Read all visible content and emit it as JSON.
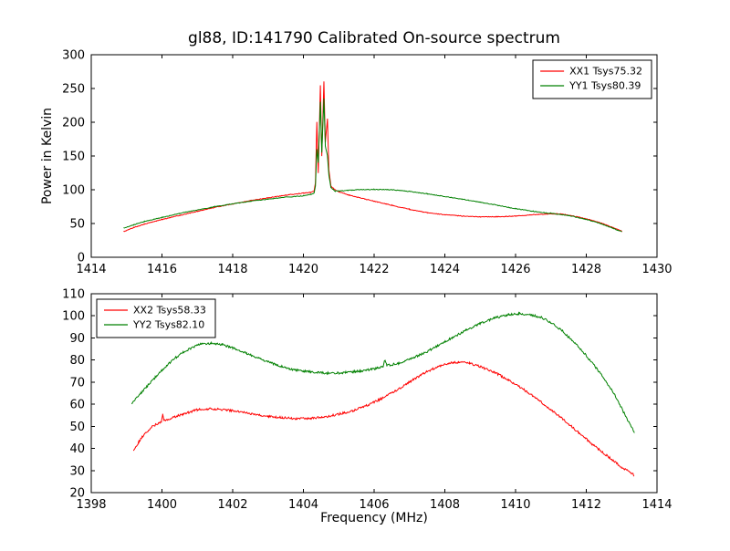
{
  "figure": {
    "background": "#ffffff",
    "frame_color": "#000000"
  },
  "chart_data": [
    {
      "type": "line",
      "title": "gl88, ID:141790 Calibrated On-source spectrum",
      "xlabel": "",
      "ylabel": "Power in Kelvin",
      "xlim": [
        1414,
        1430
      ],
      "ylim": [
        0,
        300
      ],
      "xticks": [
        1414,
        1416,
        1418,
        1420,
        1422,
        1424,
        1426,
        1428,
        1430
      ],
      "yticks": [
        0,
        50,
        100,
        150,
        200,
        250,
        300
      ],
      "grid": false,
      "legend_position": "top-right",
      "series": [
        {
          "name": "XX1",
          "label": "XX1 Tsys75.32",
          "color": "#ff0000",
          "noise": 0.5,
          "points": [
            [
              1414.92,
              38
            ],
            [
              1415.2,
              44
            ],
            [
              1415.5,
              49
            ],
            [
              1416,
              56
            ],
            [
              1416.5,
              62
            ],
            [
              1417,
              68
            ],
            [
              1417.5,
              74
            ],
            [
              1418,
              79
            ],
            [
              1418.5,
              84
            ],
            [
              1419,
              88
            ],
            [
              1419.5,
              92
            ],
            [
              1420,
              95
            ],
            [
              1420.2,
              96
            ],
            [
              1420.3,
              98
            ],
            [
              1420.34,
              110
            ],
            [
              1420.38,
              200
            ],
            [
              1420.42,
              125
            ],
            [
              1420.48,
              255
            ],
            [
              1420.52,
              150
            ],
            [
              1420.58,
              260
            ],
            [
              1420.62,
              170
            ],
            [
              1420.68,
              205
            ],
            [
              1420.72,
              130
            ],
            [
              1420.78,
              105
            ],
            [
              1420.9,
              100
            ],
            [
              1421,
              97
            ],
            [
              1421.3,
              92
            ],
            [
              1421.6,
              88
            ],
            [
              1422,
              83
            ],
            [
              1422.5,
              77
            ],
            [
              1423,
              71
            ],
            [
              1423.5,
              66
            ],
            [
              1424,
              63
            ],
            [
              1424.5,
              61
            ],
            [
              1425,
              60
            ],
            [
              1425.5,
              60
            ],
            [
              1426,
              61
            ],
            [
              1426.5,
              63
            ],
            [
              1427,
              64.5
            ],
            [
              1427.3,
              64
            ],
            [
              1427.6,
              61.5
            ],
            [
              1428,
              57
            ],
            [
              1428.4,
              51
            ],
            [
              1428.7,
              45
            ],
            [
              1429,
              39
            ]
          ]
        },
        {
          "name": "YY1",
          "label": "YY1 Tsys80.39",
          "color": "#008000",
          "noise": 0.5,
          "points": [
            [
              1414.92,
              43
            ],
            [
              1415.2,
              48
            ],
            [
              1415.5,
              53
            ],
            [
              1416,
              59
            ],
            [
              1416.5,
              65
            ],
            [
              1417,
              70
            ],
            [
              1417.5,
              75
            ],
            [
              1418,
              79
            ],
            [
              1418.5,
              83
            ],
            [
              1419,
              86
            ],
            [
              1419.5,
              89
            ],
            [
              1420,
              91
            ],
            [
              1420.2,
              93
            ],
            [
              1420.3,
              95
            ],
            [
              1420.34,
              105
            ],
            [
              1420.38,
              160
            ],
            [
              1420.42,
              140
            ],
            [
              1420.48,
              230
            ],
            [
              1420.52,
              155
            ],
            [
              1420.58,
              235
            ],
            [
              1420.62,
              165
            ],
            [
              1420.68,
              150
            ],
            [
              1420.72,
              122
            ],
            [
              1420.78,
              103
            ],
            [
              1420.9,
              98
            ],
            [
              1421,
              98
            ],
            [
              1421.5,
              100
            ],
            [
              1422,
              100.5
            ],
            [
              1422.5,
              100
            ],
            [
              1423,
              97.5
            ],
            [
              1423.5,
              94
            ],
            [
              1424,
              90
            ],
            [
              1424.5,
              86
            ],
            [
              1425,
              81.5
            ],
            [
              1425.5,
              77
            ],
            [
              1426,
              72
            ],
            [
              1426.5,
              68
            ],
            [
              1427,
              65
            ],
            [
              1427.5,
              62
            ],
            [
              1428,
              56
            ],
            [
              1428.4,
              50
            ],
            [
              1428.7,
              44
            ],
            [
              1429,
              38
            ]
          ]
        }
      ]
    },
    {
      "type": "line",
      "title": "",
      "xlabel": "Frequency (MHz)",
      "ylabel": "",
      "xlim": [
        1398,
        1414
      ],
      "ylim": [
        20,
        110
      ],
      "xticks": [
        1398,
        1400,
        1402,
        1404,
        1406,
        1408,
        1410,
        1412,
        1414
      ],
      "yticks": [
        20,
        30,
        40,
        50,
        60,
        70,
        80,
        90,
        100,
        110
      ],
      "grid": false,
      "legend_position": "top-left",
      "series": [
        {
          "name": "XX2",
          "label": "XX2 Tsys58.33",
          "color": "#ff0000",
          "noise": 0.5,
          "points": [
            [
              1399.2,
              39
            ],
            [
              1399.35,
              43
            ],
            [
              1399.5,
              46.5
            ],
            [
              1399.7,
              49.5
            ],
            [
              1399.9,
              51.5
            ],
            [
              1399.98,
              52
            ],
            [
              1400.02,
              55.5
            ],
            [
              1400.06,
              52.5
            ],
            [
              1400.3,
              54
            ],
            [
              1400.6,
              55.5
            ],
            [
              1401,
              57.5
            ],
            [
              1401.4,
              58
            ],
            [
              1401.8,
              57.5
            ],
            [
              1402.2,
              56.5
            ],
            [
              1402.6,
              55.5
            ],
            [
              1403,
              54.5
            ],
            [
              1403.4,
              54
            ],
            [
              1403.8,
              53.5
            ],
            [
              1404.2,
              53.5
            ],
            [
              1404.6,
              54.2
            ],
            [
              1405,
              55.5
            ],
            [
              1405.4,
              57
            ],
            [
              1405.8,
              59.5
            ],
            [
              1406.2,
              62.5
            ],
            [
              1406.6,
              66
            ],
            [
              1407,
              70
            ],
            [
              1407.4,
              74
            ],
            [
              1407.8,
              77
            ],
            [
              1408.1,
              78.5
            ],
            [
              1408.4,
              79
            ],
            [
              1408.7,
              78.5
            ],
            [
              1409,
              77
            ],
            [
              1409.4,
              74.5
            ],
            [
              1409.8,
              71
            ],
            [
              1410.2,
              67
            ],
            [
              1410.6,
              62.5
            ],
            [
              1411,
              57.5
            ],
            [
              1411.4,
              52.5
            ],
            [
              1411.8,
              47
            ],
            [
              1412.2,
              41.5
            ],
            [
              1412.6,
              36.5
            ],
            [
              1413,
              31.5
            ],
            [
              1413.35,
              28
            ]
          ]
        },
        {
          "name": "YY2",
          "label": "YY2 Tsys82.10",
          "color": "#008000",
          "noise": 0.5,
          "points": [
            [
              1399.15,
              60.5
            ],
            [
              1399.4,
              65
            ],
            [
              1399.6,
              68.5
            ],
            [
              1399.8,
              72
            ],
            [
              1400,
              75.5
            ],
            [
              1400.3,
              80
            ],
            [
              1400.6,
              83.5
            ],
            [
              1400.9,
              86
            ],
            [
              1401.1,
              87.3
            ],
            [
              1401.4,
              87.5
            ],
            [
              1401.7,
              87
            ],
            [
              1402,
              85.5
            ],
            [
              1402.4,
              83
            ],
            [
              1402.8,
              80.5
            ],
            [
              1403.2,
              78
            ],
            [
              1403.6,
              76
            ],
            [
              1404,
              75
            ],
            [
              1404.4,
              74.3
            ],
            [
              1404.8,
              74
            ],
            [
              1405.2,
              74.3
            ],
            [
              1405.6,
              75
            ],
            [
              1406,
              76
            ],
            [
              1406.25,
              77
            ],
            [
              1406.3,
              80
            ],
            [
              1406.36,
              77.5
            ],
            [
              1406.7,
              78.5
            ],
            [
              1407,
              80.5
            ],
            [
              1407.4,
              83
            ],
            [
              1407.8,
              86.5
            ],
            [
              1408.2,
              90
            ],
            [
              1408.6,
              93.5
            ],
            [
              1409,
              96.5
            ],
            [
              1409.4,
              99
            ],
            [
              1409.8,
              100.5
            ],
            [
              1410.1,
              101
            ],
            [
              1410.4,
              100.5
            ],
            [
              1410.7,
              99.5
            ],
            [
              1411,
              97
            ],
            [
              1411.3,
              93.5
            ],
            [
              1411.6,
              89
            ],
            [
              1412,
              82
            ],
            [
              1412.4,
              74
            ],
            [
              1412.8,
              64.5
            ],
            [
              1413.1,
              55
            ],
            [
              1413.35,
              47.5
            ]
          ]
        }
      ]
    }
  ]
}
